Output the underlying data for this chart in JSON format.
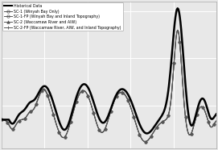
{
  "background_color": "#e8e8e8",
  "grid_color": "#ffffff",
  "legend_entries": [
    "Historical Data",
    "SC-1 (Winyah Bay Only)",
    "SC-1-FP (Winyah Bay and Inland Topography)",
    "SC-2 (Waccamaw River and AIW)",
    "SC-2-FP (Waccamaw River, AIW, and Inland Topography)"
  ],
  "hist_color": "#000000",
  "sc_color": "#555555",
  "hist_lw": 1.8,
  "sc_lw": 0.7,
  "marker_step": 8,
  "legend_fontsize": 3.4,
  "figsize": [
    2.71,
    1.86
  ],
  "dpi": 100
}
